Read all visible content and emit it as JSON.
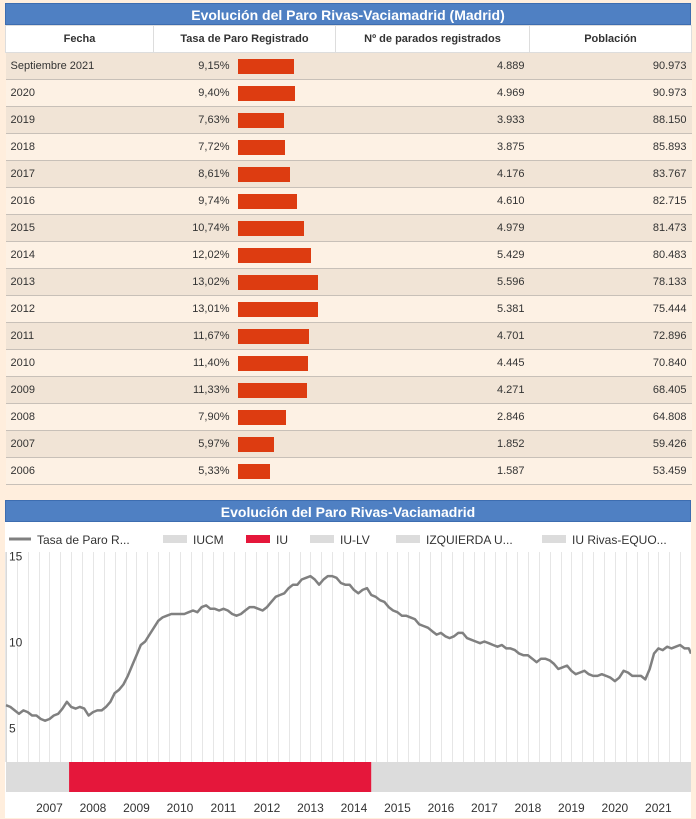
{
  "table": {
    "title": "Evolución del Paro Rivas-Vaciamadrid (Madrid)",
    "headers": [
      "Fecha",
      "Tasa de Paro Registrado",
      "Nº de parados registrados",
      "Población"
    ],
    "rows": [
      {
        "fecha": "Septiembre 2021",
        "tasa": "9,15%",
        "tasa_value": 9.15,
        "parados": "4.889",
        "poblacion": "90.973"
      },
      {
        "fecha": "2020",
        "tasa": "9,40%",
        "tasa_value": 9.4,
        "parados": "4.969",
        "poblacion": "90.973"
      },
      {
        "fecha": "2019",
        "tasa": "7,63%",
        "tasa_value": 7.63,
        "parados": "3.933",
        "poblacion": "88.150"
      },
      {
        "fecha": "2018",
        "tasa": "7,72%",
        "tasa_value": 7.72,
        "parados": "3.875",
        "poblacion": "85.893"
      },
      {
        "fecha": "2017",
        "tasa": "8,61%",
        "tasa_value": 8.61,
        "parados": "4.176",
        "poblacion": "83.767"
      },
      {
        "fecha": "2016",
        "tasa": "9,74%",
        "tasa_value": 9.74,
        "parados": "4.610",
        "poblacion": "82.715"
      },
      {
        "fecha": "2015",
        "tasa": "10,74%",
        "tasa_value": 10.74,
        "parados": "4.979",
        "poblacion": "81.473"
      },
      {
        "fecha": "2014",
        "tasa": "12,02%",
        "tasa_value": 12.02,
        "parados": "5.429",
        "poblacion": "80.483"
      },
      {
        "fecha": "2013",
        "tasa": "13,02%",
        "tasa_value": 13.02,
        "parados": "5.596",
        "poblacion": "78.133"
      },
      {
        "fecha": "2012",
        "tasa": "13,01%",
        "tasa_value": 13.01,
        "parados": "5.381",
        "poblacion": "75.444"
      },
      {
        "fecha": "2011",
        "tasa": "11,67%",
        "tasa_value": 11.67,
        "parados": "4.701",
        "poblacion": "72.896"
      },
      {
        "fecha": "2010",
        "tasa": "11,40%",
        "tasa_value": 11.4,
        "parados": "4.445",
        "poblacion": "70.840"
      },
      {
        "fecha": "2009",
        "tasa": "11,33%",
        "tasa_value": 11.33,
        "parados": "4.271",
        "poblacion": "68.405"
      },
      {
        "fecha": "2008",
        "tasa": "7,90%",
        "tasa_value": 7.9,
        "parados": "2.846",
        "poblacion": "64.808"
      },
      {
        "fecha": "2007",
        "tasa": "5,97%",
        "tasa_value": 5.97,
        "parados": "1.852",
        "poblacion": "59.426"
      },
      {
        "fecha": "2006",
        "tasa": "5,33%",
        "tasa_value": 5.33,
        "parados": "1.587",
        "poblacion": "53.459"
      }
    ],
    "bar_color": "#dd3c11"
  },
  "chart_data": {
    "type": "line",
    "title": "Evolución del Paro Rivas-Vaciamadrid",
    "legend": [
      {
        "name": "Tasa de Paro R...",
        "color": "#808080",
        "kind": "line"
      },
      {
        "name": "IUCM",
        "color": "#dcdcdc",
        "kind": "box"
      },
      {
        "name": "IU",
        "color": "#e5173b",
        "kind": "box"
      },
      {
        "name": "IU-LV",
        "color": "#dcdcdc",
        "kind": "box"
      },
      {
        "name": "IZQUIERDA U...",
        "color": "#dcdcdc",
        "kind": "box"
      },
      {
        "name": "IU Rivas-EQUO...",
        "color": "#dcdcdc",
        "kind": "box"
      }
    ],
    "legend_position": "top",
    "xlim": [
      2006.0,
      2021.75
    ],
    "ylim": [
      3,
      15.2
    ],
    "y_ticks": [
      5,
      10,
      15
    ],
    "x_ticks": [
      2007,
      2008,
      2009,
      2010,
      2011,
      2012,
      2013,
      2014,
      2015,
      2016,
      2017,
      2018,
      2019,
      2020,
      2021
    ],
    "grid": "vertical",
    "series_color": "#808080",
    "series": [
      {
        "name": "Tasa de Paro R...",
        "points": [
          [
            2006.0,
            6.3
          ],
          [
            2006.1,
            6.2
          ],
          [
            2006.2,
            6.0
          ],
          [
            2006.3,
            5.8
          ],
          [
            2006.4,
            6.0
          ],
          [
            2006.5,
            5.9
          ],
          [
            2006.6,
            5.7
          ],
          [
            2006.7,
            5.7
          ],
          [
            2006.8,
            5.5
          ],
          [
            2006.9,
            5.4
          ],
          [
            2007.0,
            5.5
          ],
          [
            2007.1,
            5.7
          ],
          [
            2007.2,
            5.8
          ],
          [
            2007.3,
            6.1
          ],
          [
            2007.4,
            6.5
          ],
          [
            2007.5,
            6.2
          ],
          [
            2007.6,
            6.1
          ],
          [
            2007.7,
            6.2
          ],
          [
            2007.8,
            6.1
          ],
          [
            2007.9,
            5.7
          ],
          [
            2008.0,
            5.9
          ],
          [
            2008.1,
            6.0
          ],
          [
            2008.2,
            6.0
          ],
          [
            2008.3,
            6.2
          ],
          [
            2008.4,
            6.5
          ],
          [
            2008.5,
            7.0
          ],
          [
            2008.6,
            7.2
          ],
          [
            2008.7,
            7.5
          ],
          [
            2008.8,
            8.0
          ],
          [
            2008.9,
            8.6
          ],
          [
            2009.0,
            9.2
          ],
          [
            2009.1,
            9.8
          ],
          [
            2009.2,
            10.0
          ],
          [
            2009.3,
            10.4
          ],
          [
            2009.4,
            10.8
          ],
          [
            2009.5,
            11.2
          ],
          [
            2009.6,
            11.4
          ],
          [
            2009.7,
            11.5
          ],
          [
            2009.8,
            11.6
          ],
          [
            2009.9,
            11.6
          ],
          [
            2010.0,
            11.6
          ],
          [
            2010.1,
            11.6
          ],
          [
            2010.2,
            11.7
          ],
          [
            2010.3,
            11.8
          ],
          [
            2010.4,
            11.7
          ],
          [
            2010.5,
            12.0
          ],
          [
            2010.6,
            12.1
          ],
          [
            2010.7,
            11.9
          ],
          [
            2010.8,
            11.9
          ],
          [
            2010.9,
            11.8
          ],
          [
            2011.0,
            11.9
          ],
          [
            2011.1,
            11.8
          ],
          [
            2011.2,
            11.6
          ],
          [
            2011.3,
            11.5
          ],
          [
            2011.4,
            11.6
          ],
          [
            2011.5,
            11.8
          ],
          [
            2011.6,
            12.0
          ],
          [
            2011.7,
            12.0
          ],
          [
            2011.8,
            11.9
          ],
          [
            2011.9,
            11.8
          ],
          [
            2012.0,
            12.0
          ],
          [
            2012.1,
            12.3
          ],
          [
            2012.2,
            12.6
          ],
          [
            2012.3,
            12.7
          ],
          [
            2012.4,
            12.8
          ],
          [
            2012.5,
            13.1
          ],
          [
            2012.6,
            13.3
          ],
          [
            2012.7,
            13.3
          ],
          [
            2012.8,
            13.6
          ],
          [
            2012.9,
            13.7
          ],
          [
            2013.0,
            13.8
          ],
          [
            2013.1,
            13.6
          ],
          [
            2013.2,
            13.3
          ],
          [
            2013.3,
            13.6
          ],
          [
            2013.4,
            13.8
          ],
          [
            2013.5,
            13.8
          ],
          [
            2013.6,
            13.7
          ],
          [
            2013.7,
            13.4
          ],
          [
            2013.8,
            13.3
          ],
          [
            2013.9,
            13.3
          ],
          [
            2014.0,
            13.0
          ],
          [
            2014.1,
            12.8
          ],
          [
            2014.2,
            13.0
          ],
          [
            2014.3,
            13.1
          ],
          [
            2014.4,
            12.7
          ],
          [
            2014.5,
            12.6
          ],
          [
            2014.6,
            12.4
          ],
          [
            2014.7,
            12.3
          ],
          [
            2014.8,
            12.0
          ],
          [
            2014.9,
            11.8
          ],
          [
            2015.0,
            11.7
          ],
          [
            2015.1,
            11.5
          ],
          [
            2015.2,
            11.5
          ],
          [
            2015.3,
            11.4
          ],
          [
            2015.4,
            11.3
          ],
          [
            2015.5,
            11.0
          ],
          [
            2015.6,
            10.9
          ],
          [
            2015.7,
            10.8
          ],
          [
            2015.8,
            10.6
          ],
          [
            2015.9,
            10.4
          ],
          [
            2016.0,
            10.5
          ],
          [
            2016.1,
            10.3
          ],
          [
            2016.2,
            10.2
          ],
          [
            2016.3,
            10.3
          ],
          [
            2016.4,
            10.5
          ],
          [
            2016.5,
            10.5
          ],
          [
            2016.6,
            10.2
          ],
          [
            2016.7,
            10.1
          ],
          [
            2016.8,
            10.0
          ],
          [
            2016.9,
            9.9
          ],
          [
            2017.0,
            10.0
          ],
          [
            2017.1,
            9.9
          ],
          [
            2017.2,
            9.8
          ],
          [
            2017.3,
            9.7
          ],
          [
            2017.4,
            9.8
          ],
          [
            2017.5,
            9.6
          ],
          [
            2017.6,
            9.6
          ],
          [
            2017.7,
            9.5
          ],
          [
            2017.8,
            9.3
          ],
          [
            2017.9,
            9.2
          ],
          [
            2018.0,
            9.2
          ],
          [
            2018.1,
            9.0
          ],
          [
            2018.2,
            8.8
          ],
          [
            2018.3,
            9.0
          ],
          [
            2018.4,
            9.0
          ],
          [
            2018.5,
            8.9
          ],
          [
            2018.6,
            8.7
          ],
          [
            2018.7,
            8.4
          ],
          [
            2018.8,
            8.5
          ],
          [
            2018.9,
            8.6
          ],
          [
            2019.0,
            8.3
          ],
          [
            2019.1,
            8.1
          ],
          [
            2019.2,
            8.2
          ],
          [
            2019.3,
            8.3
          ],
          [
            2019.4,
            8.1
          ],
          [
            2019.5,
            8.0
          ],
          [
            2019.6,
            8.0
          ],
          [
            2019.7,
            8.1
          ],
          [
            2019.8,
            8.0
          ],
          [
            2019.9,
            7.9
          ],
          [
            2020.0,
            7.7
          ],
          [
            2020.1,
            7.9
          ],
          [
            2020.2,
            8.3
          ],
          [
            2020.3,
            8.2
          ],
          [
            2020.4,
            8.0
          ],
          [
            2020.5,
            8.0
          ],
          [
            2020.6,
            8.0
          ],
          [
            2020.7,
            7.8
          ],
          [
            2020.8,
            8.4
          ],
          [
            2020.9,
            9.3
          ],
          [
            2021.0,
            9.6
          ],
          [
            2021.1,
            9.5
          ],
          [
            2021.2,
            9.7
          ],
          [
            2021.3,
            9.6
          ],
          [
            2021.4,
            9.7
          ],
          [
            2021.5,
            9.8
          ],
          [
            2021.6,
            9.6
          ],
          [
            2021.7,
            9.6
          ],
          [
            2021.75,
            9.3
          ]
        ]
      }
    ],
    "bands": [
      {
        "name": "IUCM",
        "from": 2006.0,
        "to": 2007.45,
        "color": "#dcdcdc"
      },
      {
        "name": "IU",
        "from": 2007.45,
        "to": 2014.4,
        "color": "#e5173b"
      },
      {
        "name": "IU-LV",
        "from": 2014.4,
        "to": 2021.75,
        "color": "#dcdcdc"
      }
    ]
  }
}
